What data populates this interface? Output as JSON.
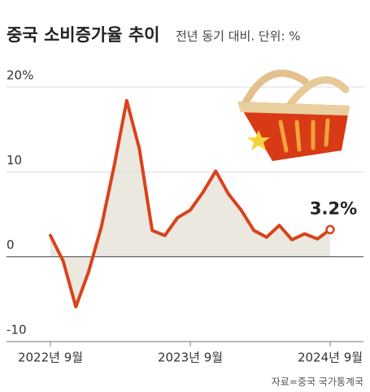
{
  "chart_data": {
    "type": "line",
    "title": "중국 소비증가율 추이",
    "subtitle": "전년 동기 대비. 단위: %",
    "source": "자료=중국 국가통계국",
    "categories": [
      "2022년 9월",
      null,
      null,
      null,
      null,
      null,
      null,
      null,
      null,
      null,
      null,
      "2023년 9월",
      null,
      null,
      null,
      null,
      null,
      null,
      null,
      null,
      null,
      null,
      "2024년 9월"
    ],
    "values": [
      2.5,
      -0.5,
      -5.9,
      -1.8,
      3.5,
      10.6,
      18.4,
      12.7,
      3.1,
      2.5,
      4.6,
      5.5,
      7.6,
      10.1,
      7.4,
      5.5,
      3.1,
      2.3,
      3.7,
      2.0,
      2.7,
      2.1,
      3.2
    ],
    "value_labels": [
      null,
      null,
      null,
      null,
      null,
      null,
      null,
      null,
      null,
      null,
      null,
      null,
      null,
      null,
      null,
      null,
      null,
      null,
      null,
      null,
      null,
      null,
      "3.2%"
    ],
    "color": "#d9431c",
    "area_color": "#ebe8e0",
    "ylim": [
      -10,
      20
    ],
    "yticks": [
      {
        "value": 20,
        "label": "20%"
      },
      10,
      0,
      -10
    ],
    "grid": true
  }
}
